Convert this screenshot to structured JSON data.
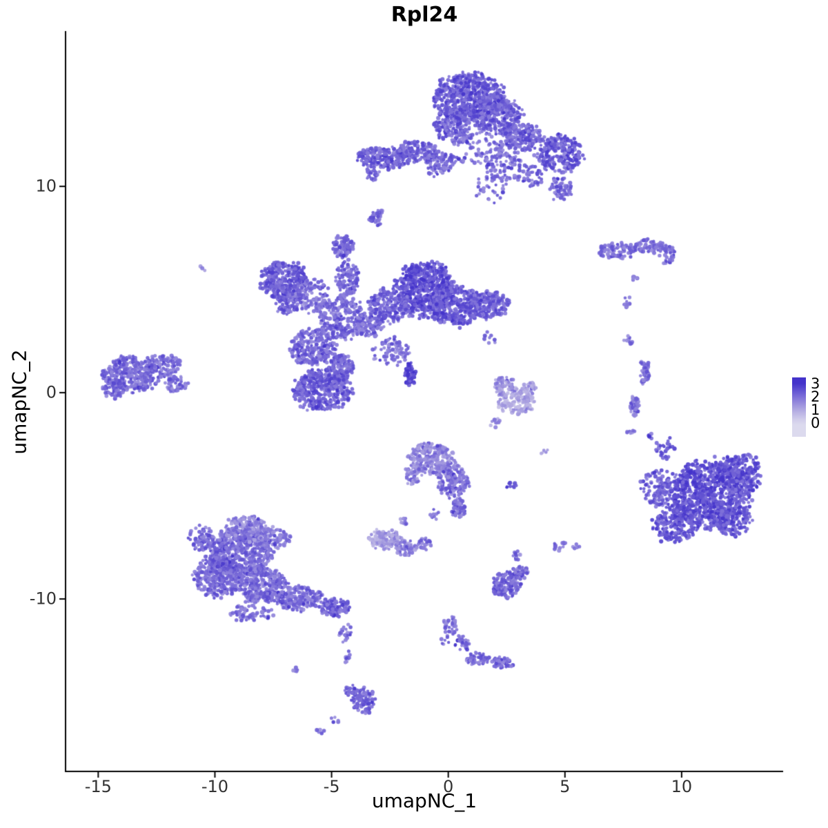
{
  "title": "Rpl24",
  "axes": {
    "x": {
      "label": "umapNC_1",
      "ticks": [
        "-15",
        "-10",
        "-5",
        "0",
        "5",
        "10"
      ],
      "tick_values": [
        -15,
        -10,
        -5,
        0,
        5,
        10
      ]
    },
    "y": {
      "label": "umapNC_2",
      "ticks": [
        "10",
        "0",
        "-10"
      ],
      "tick_values": [
        10,
        0,
        -10
      ]
    }
  },
  "legend": {
    "labels": [
      "3",
      "2",
      "1",
      "0"
    ],
    "values": [
      3,
      2,
      1,
      0
    ]
  },
  "chart_data": {
    "type": "scatter",
    "title": "Rpl24",
    "xlabel": "umapNC_1",
    "ylabel": "umapNC_2",
    "xlim": [
      -16.4,
      14.35
    ],
    "ylim": [
      -18.36,
      17.53
    ],
    "grid": false,
    "legend_position": "right",
    "value_range": [
      0,
      3
    ],
    "colormap": {
      "stops": [
        [
          0,
          "#dcdaee"
        ],
        [
          1,
          "#b1a9e1"
        ],
        [
          2,
          "#7c6ed8"
        ],
        [
          3,
          "#4433cb"
        ]
      ]
    },
    "point_radius_px": 2.6,
    "clusters": [
      {
        "name": "top-main",
        "blobs": [
          {
            "x": 0.9,
            "y": 14.3,
            "rx": 1.5,
            "ry": 1.15,
            "n": 650,
            "v": 2.35
          },
          {
            "x": 2.1,
            "y": 13.4,
            "rx": 1.0,
            "ry": 0.9,
            "n": 260,
            "v": 2.25
          },
          {
            "x": 0.2,
            "y": 13.0,
            "rx": 0.8,
            "ry": 0.8,
            "n": 160,
            "v": 2.3
          },
          {
            "x": 3.2,
            "y": 12.4,
            "rx": 0.8,
            "ry": 0.65,
            "n": 150,
            "v": 2.2
          },
          {
            "x": 4.8,
            "y": 11.6,
            "rx": 1.0,
            "ry": 0.9,
            "n": 260,
            "v": 2.3
          },
          {
            "x": 2.4,
            "y": 11.2,
            "rx": 0.9,
            "ry": 1.0,
            "n": 110,
            "v": 2.05
          },
          {
            "x": 1.2,
            "y": 11.9,
            "rx": 1.1,
            "ry": 0.9,
            "n": 80,
            "v": 2.0
          },
          {
            "x": -0.6,
            "y": 11.0,
            "rx": 0.5,
            "ry": 0.5,
            "n": 25,
            "v": 2.0
          },
          {
            "x": 1.8,
            "y": 9.9,
            "rx": 0.7,
            "ry": 0.7,
            "n": 30,
            "v": 2.0
          },
          {
            "x": 4.8,
            "y": 9.9,
            "rx": 0.5,
            "ry": 0.55,
            "n": 55,
            "v": 2.1
          },
          {
            "x": 3.6,
            "y": 10.5,
            "rx": 0.5,
            "ry": 0.5,
            "n": 45,
            "v": 2.15
          }
        ]
      },
      {
        "name": "top-left-arm",
        "blobs": [
          {
            "x": -2.7,
            "y": 11.4,
            "rx": 1.1,
            "ry": 0.55,
            "n": 210,
            "v": 2.25
          },
          {
            "x": -1.3,
            "y": 11.7,
            "rx": 0.9,
            "ry": 0.5,
            "n": 130,
            "v": 2.15
          },
          {
            "x": -0.3,
            "y": 11.2,
            "rx": 0.7,
            "ry": 0.45,
            "n": 70,
            "v": 2.1
          },
          {
            "x": -3.2,
            "y": 10.6,
            "rx": 0.3,
            "ry": 0.35,
            "n": 25,
            "v": 2.1
          },
          {
            "x": -3.05,
            "y": 8.5,
            "rx": 0.32,
            "ry": 0.38,
            "n": 30,
            "v": 2.25
          }
        ]
      },
      {
        "name": "upper-right-strip",
        "blobs": [
          {
            "x": 7.2,
            "y": 6.9,
            "rx": 0.85,
            "ry": 0.38,
            "n": 90,
            "v": 2.05
          },
          {
            "x": 8.6,
            "y": 7.1,
            "rx": 0.75,
            "ry": 0.33,
            "n": 75,
            "v": 2.05
          },
          {
            "x": 9.4,
            "y": 6.7,
            "rx": 0.35,
            "ry": 0.45,
            "n": 35,
            "v": 2.15
          },
          {
            "x": 8.0,
            "y": 5.5,
            "rx": 0.18,
            "ry": 0.18,
            "n": 8,
            "v": 1.9
          },
          {
            "x": 7.7,
            "y": 4.4,
            "rx": 0.22,
            "ry": 0.25,
            "n": 10,
            "v": 2.0
          }
        ]
      },
      {
        "name": "center-complex",
        "blobs": [
          {
            "x": -7.0,
            "y": 5.4,
            "rx": 1.0,
            "ry": 1.0,
            "n": 330,
            "v": 2.3
          },
          {
            "x": -6.9,
            "y": 4.3,
            "rx": 0.5,
            "ry": 0.5,
            "n": 70,
            "v": 2.2
          },
          {
            "x": -5.9,
            "y": 4.7,
            "rx": 0.8,
            "ry": 0.8,
            "n": 120,
            "v": 1.95
          },
          {
            "x": -4.6,
            "y": 3.6,
            "rx": 1.0,
            "ry": 1.0,
            "n": 260,
            "v": 2.05
          },
          {
            "x": -4.3,
            "y": 5.5,
            "rx": 0.5,
            "ry": 0.9,
            "n": 110,
            "v": 2.15
          },
          {
            "x": -4.5,
            "y": 7.1,
            "rx": 0.45,
            "ry": 0.55,
            "n": 85,
            "v": 2.25
          },
          {
            "x": -1.0,
            "y": 5.0,
            "rx": 1.25,
            "ry": 1.3,
            "n": 600,
            "v": 2.5
          },
          {
            "x": 0.3,
            "y": 4.2,
            "rx": 1.1,
            "ry": 0.95,
            "n": 330,
            "v": 2.35
          },
          {
            "x": 1.6,
            "y": 4.3,
            "rx": 1.0,
            "ry": 0.7,
            "n": 240,
            "v": 2.25
          },
          {
            "x": -2.5,
            "y": 4.2,
            "rx": 0.9,
            "ry": 0.8,
            "n": 200,
            "v": 2.2
          },
          {
            "x": -3.4,
            "y": 3.2,
            "rx": 0.6,
            "ry": 0.55,
            "n": 90,
            "v": 2.1
          },
          {
            "x": -5.8,
            "y": 2.2,
            "rx": 0.95,
            "ry": 0.85,
            "n": 240,
            "v": 2.1
          },
          {
            "x": -5.4,
            "y": 0.1,
            "rx": 1.2,
            "ry": 0.95,
            "n": 400,
            "v": 2.3
          },
          {
            "x": -4.6,
            "y": 1.2,
            "rx": 0.6,
            "ry": 0.6,
            "n": 120,
            "v": 2.2
          },
          {
            "x": -2.4,
            "y": 2.0,
            "rx": 0.8,
            "ry": 0.7,
            "n": 80,
            "v": 2.0
          },
          {
            "x": -1.65,
            "y": 0.9,
            "rx": 0.25,
            "ry": 0.55,
            "n": 50,
            "v": 2.75
          },
          {
            "x": 1.8,
            "y": 2.6,
            "rx": 0.3,
            "ry": 0.4,
            "n": 10,
            "v": 1.8
          }
        ]
      },
      {
        "name": "left-lobe",
        "blobs": [
          {
            "x": -13.6,
            "y": 0.9,
            "rx": 1.2,
            "ry": 0.85,
            "n": 340,
            "v": 2.1
          },
          {
            "x": -12.2,
            "y": 1.3,
            "rx": 0.7,
            "ry": 0.55,
            "n": 110,
            "v": 2.0
          },
          {
            "x": -11.7,
            "y": 0.4,
            "rx": 0.5,
            "ry": 0.4,
            "n": 50,
            "v": 2.05
          },
          {
            "x": -14.3,
            "y": 0.2,
            "rx": 0.5,
            "ry": 0.45,
            "n": 60,
            "v": 2.15
          }
        ]
      },
      {
        "name": "mid-light",
        "blobs": [
          {
            "x": 2.9,
            "y": -0.4,
            "rx": 0.75,
            "ry": 0.65,
            "n": 150,
            "v": 1.05
          },
          {
            "x": 2.4,
            "y": 0.4,
            "rx": 0.45,
            "ry": 0.45,
            "n": 55,
            "v": 1.4
          },
          {
            "x": 3.5,
            "y": 0.2,
            "rx": 0.3,
            "ry": 0.3,
            "n": 25,
            "v": 1.3
          },
          {
            "x": 2.0,
            "y": -1.4,
            "rx": 0.3,
            "ry": 0.25,
            "n": 12,
            "v": 1.3
          }
        ]
      },
      {
        "name": "right-thin-strip",
        "blobs": [
          {
            "x": 8.4,
            "y": 1.0,
            "rx": 0.22,
            "ry": 0.65,
            "n": 45,
            "v": 2.05
          },
          {
            "x": 8.0,
            "y": -0.6,
            "rx": 0.2,
            "ry": 0.55,
            "n": 40,
            "v": 2.0
          },
          {
            "x": 7.8,
            "y": -1.9,
            "rx": 0.18,
            "ry": 0.2,
            "n": 7,
            "v": 1.9
          },
          {
            "x": 7.7,
            "y": 2.5,
            "rx": 0.2,
            "ry": 0.25,
            "n": 9,
            "v": 2.0
          }
        ]
      },
      {
        "name": "right-large",
        "blobs": [
          {
            "x": 11.2,
            "y": -4.9,
            "rx": 1.7,
            "ry": 1.6,
            "n": 850,
            "v": 2.5
          },
          {
            "x": 12.5,
            "y": -4.0,
            "rx": 0.9,
            "ry": 1.0,
            "n": 220,
            "v": 2.45
          },
          {
            "x": 9.7,
            "y": -6.4,
            "rx": 0.9,
            "ry": 0.85,
            "n": 200,
            "v": 2.4
          },
          {
            "x": 12.2,
            "y": -6.2,
            "rx": 0.8,
            "ry": 0.7,
            "n": 150,
            "v": 2.45
          },
          {
            "x": 9.0,
            "y": -4.6,
            "rx": 0.8,
            "ry": 0.9,
            "n": 110,
            "v": 2.25
          },
          {
            "x": 9.3,
            "y": -2.7,
            "rx": 0.45,
            "ry": 0.55,
            "n": 28,
            "v": 2.3
          },
          {
            "x": 8.6,
            "y": -2.1,
            "rx": 0.2,
            "ry": 0.2,
            "n": 6,
            "v": 2.2
          }
        ]
      },
      {
        "name": "center-lower",
        "blobs": [
          {
            "x": -0.7,
            "y": -3.2,
            "rx": 0.95,
            "ry": 0.75,
            "n": 240,
            "v": 1.65
          },
          {
            "x": 0.2,
            "y": -4.3,
            "rx": 0.65,
            "ry": 0.8,
            "n": 150,
            "v": 1.95
          },
          {
            "x": 0.45,
            "y": -5.6,
            "rx": 0.3,
            "ry": 0.5,
            "n": 55,
            "v": 2.05
          },
          {
            "x": -1.5,
            "y": -4.0,
            "rx": 0.35,
            "ry": 0.45,
            "n": 45,
            "v": 1.75
          },
          {
            "x": 2.7,
            "y": -4.5,
            "rx": 0.25,
            "ry": 0.15,
            "n": 12,
            "v": 2.7
          },
          {
            "x": -0.6,
            "y": -5.9,
            "rx": 0.2,
            "ry": 0.3,
            "n": 10,
            "v": 1.9
          },
          {
            "x": -1.9,
            "y": -6.3,
            "rx": 0.25,
            "ry": 0.25,
            "n": 8,
            "v": 1.8
          }
        ]
      },
      {
        "name": "lower-light",
        "blobs": [
          {
            "x": -2.7,
            "y": -7.1,
            "rx": 0.65,
            "ry": 0.5,
            "n": 120,
            "v": 1.25
          },
          {
            "x": -1.8,
            "y": -7.5,
            "rx": 0.45,
            "ry": 0.4,
            "n": 60,
            "v": 1.7
          },
          {
            "x": -1.0,
            "y": -7.3,
            "rx": 0.3,
            "ry": 0.3,
            "n": 25,
            "v": 1.9
          }
        ]
      },
      {
        "name": "bottom-left-large",
        "blobs": [
          {
            "x": -9.0,
            "y": -7.8,
            "rx": 1.4,
            "ry": 1.15,
            "n": 560,
            "v": 2.05
          },
          {
            "x": -9.9,
            "y": -9.0,
            "rx": 1.0,
            "ry": 0.9,
            "n": 300,
            "v": 2.1
          },
          {
            "x": -8.0,
            "y": -9.3,
            "rx": 1.05,
            "ry": 0.9,
            "n": 280,
            "v": 2.05
          },
          {
            "x": -8.6,
            "y": -6.6,
            "rx": 0.95,
            "ry": 0.6,
            "n": 170,
            "v": 1.65
          },
          {
            "x": -7.4,
            "y": -7.0,
            "rx": 0.6,
            "ry": 0.5,
            "n": 90,
            "v": 1.8
          },
          {
            "x": -6.4,
            "y": -10.0,
            "rx": 0.95,
            "ry": 0.6,
            "n": 170,
            "v": 2.05
          },
          {
            "x": -4.9,
            "y": -10.4,
            "rx": 0.65,
            "ry": 0.45,
            "n": 110,
            "v": 2.2
          },
          {
            "x": -8.4,
            "y": -10.7,
            "rx": 0.9,
            "ry": 0.45,
            "n": 60,
            "v": 2.0
          },
          {
            "x": -10.6,
            "y": -7.0,
            "rx": 0.5,
            "ry": 0.6,
            "n": 70,
            "v": 2.1
          }
        ]
      },
      {
        "name": "bottom-trail",
        "blobs": [
          {
            "x": -4.4,
            "y": -11.6,
            "rx": 0.3,
            "ry": 0.55,
            "n": 22,
            "v": 2.05
          },
          {
            "x": -4.3,
            "y": -12.8,
            "rx": 0.18,
            "ry": 0.35,
            "n": 12,
            "v": 2.1
          },
          {
            "x": -3.65,
            "y": -14.9,
            "rx": 0.5,
            "ry": 0.65,
            "n": 95,
            "v": 2.2
          },
          {
            "x": -4.2,
            "y": -14.4,
            "rx": 0.25,
            "ry": 0.3,
            "n": 20,
            "v": 2.1
          },
          {
            "x": -4.9,
            "y": -15.9,
            "rx": 0.2,
            "ry": 0.2,
            "n": 6,
            "v": 2.0
          },
          {
            "x": -6.6,
            "y": -13.5,
            "rx": 0.2,
            "ry": 0.2,
            "n": 5,
            "v": 1.9
          },
          {
            "x": -5.5,
            "y": -16.4,
            "rx": 0.18,
            "ry": 0.18,
            "n": 5,
            "v": 2.0
          }
        ]
      },
      {
        "name": "bottom-mid",
        "blobs": [
          {
            "x": 2.5,
            "y": -9.3,
            "rx": 0.6,
            "ry": 0.6,
            "n": 140,
            "v": 2.15
          },
          {
            "x": 3.1,
            "y": -8.7,
            "rx": 0.35,
            "ry": 0.3,
            "n": 40,
            "v": 2.05
          },
          {
            "x": 2.9,
            "y": -7.9,
            "rx": 0.25,
            "ry": 0.25,
            "n": 12,
            "v": 1.95
          },
          {
            "x": 4.8,
            "y": -7.4,
            "rx": 0.3,
            "ry": 0.25,
            "n": 14,
            "v": 2.05
          },
          {
            "x": 5.5,
            "y": -7.5,
            "rx": 0.15,
            "ry": 0.15,
            "n": 5,
            "v": 2.0
          }
        ]
      },
      {
        "name": "bottom-center-trail",
        "blobs": [
          {
            "x": 0.1,
            "y": -11.3,
            "rx": 0.3,
            "ry": 0.45,
            "n": 28,
            "v": 2.0
          },
          {
            "x": 0.6,
            "y": -12.2,
            "rx": 0.3,
            "ry": 0.4,
            "n": 30,
            "v": 2.1
          },
          {
            "x": 1.3,
            "y": -12.9,
            "rx": 0.5,
            "ry": 0.3,
            "n": 45,
            "v": 2.05
          },
          {
            "x": 2.3,
            "y": -13.1,
            "rx": 0.45,
            "ry": 0.3,
            "n": 45,
            "v": 2.2
          },
          {
            "x": -0.1,
            "y": -12.0,
            "rx": 0.2,
            "ry": 0.25,
            "n": 8,
            "v": 2.0
          }
        ]
      },
      {
        "name": "isolated-dots",
        "blobs": [
          {
            "x": -10.55,
            "y": 6.0,
            "rx": 0.15,
            "ry": 0.15,
            "n": 3,
            "v": 1.6
          },
          {
            "x": 4.15,
            "y": -2.9,
            "rx": 0.18,
            "ry": 0.15,
            "n": 5,
            "v": 1.1
          }
        ]
      }
    ]
  }
}
